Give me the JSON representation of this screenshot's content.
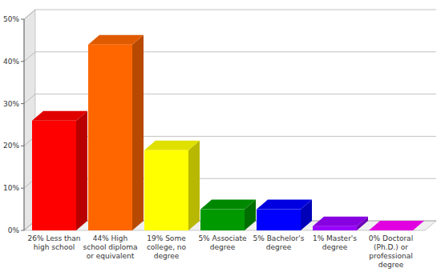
{
  "chart_data": {
    "type": "bar",
    "categories": [
      "26% Less than high school",
      "44% High school diploma or equivalent",
      "19% Some college, no degree",
      "5% Associate degree",
      "5% Bachelor's degree",
      "1% Master's degree",
      "0% Doctoral (Ph.D.) or professional degree"
    ],
    "values": [
      26,
      44,
      19,
      5,
      5,
      1,
      0
    ],
    "colors": [
      "#ff0000",
      "#ff6600",
      "#ffff00",
      "#009900",
      "#0000ff",
      "#9900ff",
      "#ff00ff"
    ],
    "ylim": [
      0,
      50
    ],
    "yticks": [
      {
        "value": 0,
        "label": "0%"
      },
      {
        "value": 10,
        "label": "10%"
      },
      {
        "value": 20,
        "label": "20%"
      },
      {
        "value": 30,
        "label": "30%"
      },
      {
        "value": 40,
        "label": "40%"
      },
      {
        "value": 50,
        "label": "50%"
      }
    ],
    "grid": true
  }
}
